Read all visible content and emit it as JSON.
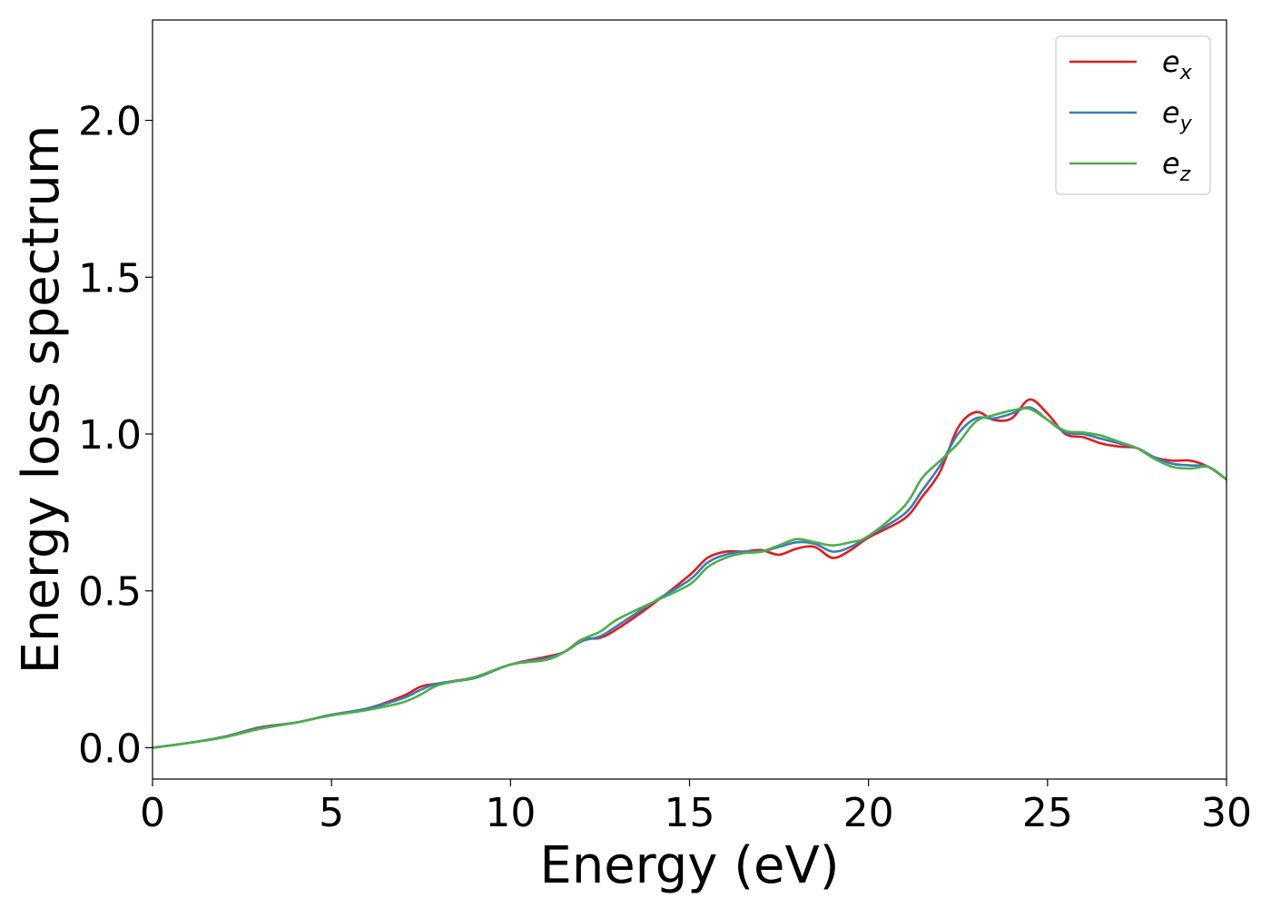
{
  "chart_data": {
    "type": "line",
    "xlabel": "Energy (eV)",
    "ylabel": "Energy loss spectrum",
    "xlim": [
      0,
      30
    ],
    "ylim": [
      -0.1,
      2.32
    ],
    "xticks": [
      0,
      5,
      10,
      15,
      20,
      25,
      30
    ],
    "xtick_labels": [
      "0",
      "5",
      "10",
      "15",
      "20",
      "25",
      "30"
    ],
    "yticks": [
      0.0,
      0.5,
      1.0,
      1.5,
      2.0
    ],
    "ytick_labels": [
      "0.0",
      "0.5",
      "1.0",
      "1.5",
      "2.0"
    ],
    "grid": false,
    "legend_position": "top-right",
    "series": [
      {
        "name": "e",
        "subscript": "x",
        "color": "#e41a1c",
        "x": [
          0,
          1,
          2,
          3,
          4,
          5,
          6,
          7,
          7.5,
          8,
          9,
          10,
          11,
          11.5,
          12,
          12.5,
          13,
          14,
          15,
          15.5,
          16,
          16.5,
          17,
          17.5,
          18,
          18.5,
          19,
          19.5,
          20,
          21,
          21.5,
          22,
          22.5,
          23,
          23.5,
          24,
          24.5,
          25,
          25.5,
          26,
          26.5,
          27,
          27.5,
          28,
          28.5,
          29,
          29.5,
          30
        ],
        "y": [
          0.0,
          0.015,
          0.035,
          0.065,
          0.08,
          0.105,
          0.125,
          0.165,
          0.195,
          0.205,
          0.225,
          0.265,
          0.29,
          0.305,
          0.345,
          0.35,
          0.38,
          0.46,
          0.55,
          0.605,
          0.625,
          0.625,
          0.63,
          0.615,
          0.635,
          0.64,
          0.605,
          0.63,
          0.67,
          0.73,
          0.8,
          0.88,
          1.02,
          1.07,
          1.045,
          1.05,
          1.11,
          1.065,
          1.0,
          0.99,
          0.97,
          0.96,
          0.955,
          0.925,
          0.915,
          0.915,
          0.895,
          0.855
        ]
      },
      {
        "name": "e",
        "subscript": "y",
        "color": "#377eb8",
        "x": [
          0,
          1,
          2,
          3,
          4,
          5,
          6,
          7,
          7.5,
          8,
          9,
          10,
          11,
          11.5,
          12,
          12.5,
          13,
          14,
          15,
          15.5,
          16,
          16.5,
          17,
          17.5,
          18,
          18.5,
          19,
          19.5,
          20,
          21,
          21.5,
          22,
          22.5,
          23,
          23.5,
          24,
          24.5,
          25,
          25.5,
          26,
          26.5,
          27,
          27.5,
          28,
          28.5,
          29,
          29.5,
          30
        ],
        "y": [
          0.0,
          0.015,
          0.035,
          0.063,
          0.08,
          0.105,
          0.125,
          0.158,
          0.185,
          0.205,
          0.222,
          0.265,
          0.285,
          0.305,
          0.34,
          0.355,
          0.39,
          0.465,
          0.535,
          0.59,
          0.615,
          0.625,
          0.625,
          0.64,
          0.655,
          0.65,
          0.625,
          0.64,
          0.675,
          0.745,
          0.82,
          0.9,
          1.0,
          1.05,
          1.05,
          1.065,
          1.085,
          1.045,
          1.005,
          1.0,
          0.985,
          0.97,
          0.955,
          0.925,
          0.905,
          0.9,
          0.895,
          0.855
        ]
      },
      {
        "name": "e",
        "subscript": "z",
        "color": "#4daf4a",
        "x": [
          0,
          1,
          2,
          3,
          4,
          5,
          6,
          7,
          7.5,
          8,
          9,
          10,
          11,
          11.5,
          12,
          12.5,
          13,
          14,
          15,
          15.5,
          16,
          16.5,
          17,
          17.5,
          18,
          18.5,
          19,
          19.5,
          20,
          21,
          21.5,
          22,
          22.5,
          23,
          23.5,
          24,
          24.5,
          25,
          25.5,
          26,
          26.5,
          27,
          27.5,
          28,
          28.5,
          29,
          29.5,
          30
        ],
        "y": [
          0.0,
          0.015,
          0.033,
          0.06,
          0.08,
          0.103,
          0.12,
          0.145,
          0.17,
          0.2,
          0.225,
          0.265,
          0.28,
          0.305,
          0.345,
          0.37,
          0.41,
          0.465,
          0.52,
          0.575,
          0.605,
          0.62,
          0.625,
          0.645,
          0.665,
          0.655,
          0.645,
          0.655,
          0.675,
          0.77,
          0.86,
          0.915,
          0.97,
          1.04,
          1.06,
          1.075,
          1.08,
          1.045,
          1.01,
          1.005,
          0.995,
          0.975,
          0.955,
          0.92,
          0.895,
          0.89,
          0.895,
          0.855
        ]
      }
    ]
  }
}
